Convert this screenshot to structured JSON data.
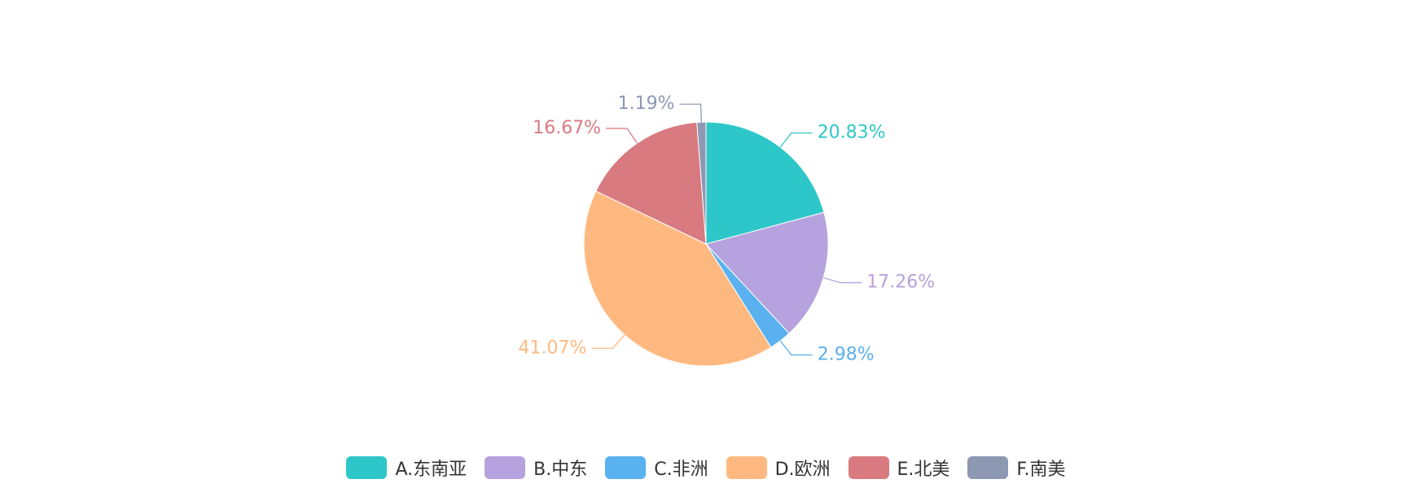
{
  "chart_data": {
    "type": "pie",
    "title": "",
    "categories": [
      "A.东南亚",
      "B.中东",
      "C.非洲",
      "D.欧洲",
      "E.北美",
      "F.南美"
    ],
    "values": [
      20.83,
      17.26,
      2.98,
      41.07,
      16.67,
      1.19
    ],
    "labels": [
      "20.83%",
      "17.26%",
      "2.98%",
      "41.07%",
      "16.67%",
      "1.19%"
    ],
    "colors": [
      "#2ec7c9",
      "#b6a2de",
      "#5ab1ef",
      "#ffb980",
      "#d87a80",
      "#8d98b3"
    ],
    "legend_position": "bottom",
    "start_angle_deg": 90,
    "direction": "clockwise"
  },
  "legend": {
    "items": [
      {
        "label": "A.东南亚",
        "color": "#2ec7c9"
      },
      {
        "label": "B.中东",
        "color": "#b6a2de"
      },
      {
        "label": "C.非洲",
        "color": "#5ab1ef"
      },
      {
        "label": "D.欧洲",
        "color": "#ffb980"
      },
      {
        "label": "E.北美",
        "color": "#d87a80"
      },
      {
        "label": "F.南美",
        "color": "#8d98b3"
      }
    ]
  }
}
